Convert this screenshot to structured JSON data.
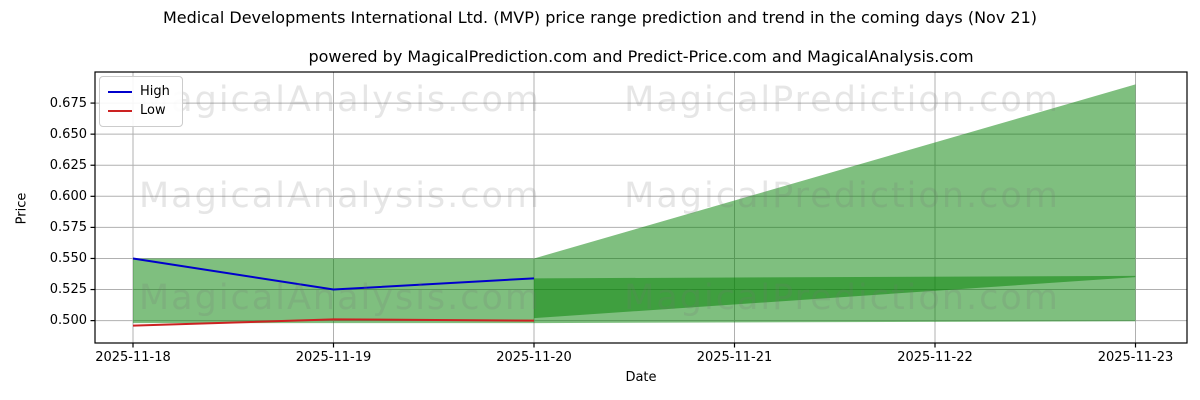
{
  "chart_data": {
    "type": "line",
    "title": "Medical Developments International Ltd. (MVP) price range prediction and trend in the coming days (Nov 21)",
    "subtitle": "powered by MagicalPrediction.com and Predict-Price.com and MagicalAnalysis.com",
    "xlabel": "Date",
    "ylabel": "Price",
    "x_dates": [
      "2025-11-18",
      "2025-11-19",
      "2025-11-20",
      "2025-11-21",
      "2025-11-22",
      "2025-11-23"
    ],
    "ytick_values": [
      0.5,
      0.525,
      0.55,
      0.575,
      0.6,
      0.625,
      0.65,
      0.675
    ],
    "ytick_labels": [
      "0.500",
      "0.525",
      "0.550",
      "0.575",
      "0.600",
      "0.625",
      "0.650",
      "0.675"
    ],
    "ylim": [
      0.482,
      0.7
    ],
    "grid": true,
    "grid_color": "#b0b0b0",
    "legend_position": "upper-left",
    "series": [
      {
        "name": "High",
        "color": "#0000cc",
        "x": [
          "2025-11-18",
          "2025-11-19",
          "2025-11-20"
        ],
        "values": [
          0.55,
          0.525,
          0.534
        ]
      },
      {
        "name": "Low",
        "color": "#cc2222",
        "x": [
          "2025-11-18",
          "2025-11-19",
          "2025-11-20"
        ],
        "values": [
          0.496,
          0.501,
          0.5
        ]
      }
    ],
    "bands": [
      {
        "name": "historical-range",
        "color": "#008000",
        "opacity": 0.5,
        "x": [
          "2025-11-18",
          "2025-11-20"
        ],
        "top": [
          0.55,
          0.55
        ],
        "bottom": [
          0.498,
          0.498
        ]
      },
      {
        "name": "prediction-range-fan",
        "color": "#008000",
        "opacity": 0.5,
        "x": [
          "2025-11-20",
          "2025-11-23"
        ],
        "top": [
          0.55,
          0.69
        ],
        "bottom": [
          0.498,
          0.4995
        ]
      },
      {
        "name": "prediction-trend-wedge",
        "color": "#008000",
        "opacity": 0.5,
        "x": [
          "2025-11-20",
          "2025-11-23"
        ],
        "top": [
          0.534,
          0.536
        ],
        "bottom": [
          0.502,
          0.535
        ]
      }
    ],
    "watermarks": {
      "left_text": "MagicalAnalysis.com",
      "right_text": "MagicalPrediction.com"
    }
  },
  "legend": {
    "high_label": "High",
    "low_label": "Low"
  }
}
